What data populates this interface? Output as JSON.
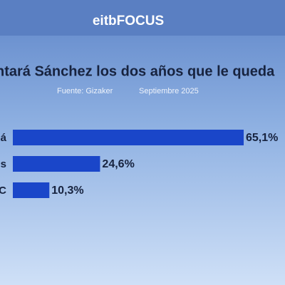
{
  "chart_data": {
    "type": "bar",
    "orientation": "horizontal",
    "brand": "eitbFOCUS",
    "title": "ntará Sánchez los dos años que le queda",
    "source": "Fuente: Gizaker",
    "date": "Septiembre 2025",
    "categories": [
      "á",
      "s",
      "C"
    ],
    "values": [
      65.1,
      24.6,
      10.3
    ],
    "value_labels": [
      "65,1%",
      "24,6%",
      "10,3%"
    ],
    "color": "#1a46c9"
  }
}
